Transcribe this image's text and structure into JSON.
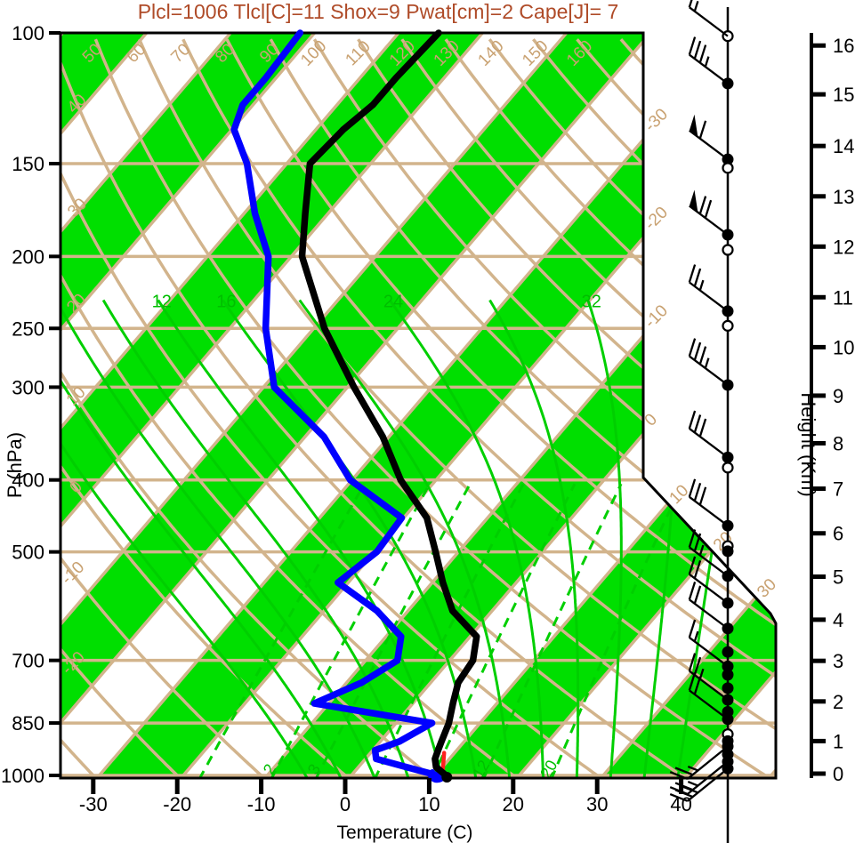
{
  "title": {
    "text": "Plcl=1006 Tlcl[C]=11 Shox=9 Pwat[cm]=2 Cape[J]= 7"
  },
  "axes": {
    "pressure": {
      "label": "P (hPa)",
      "ticks": [
        100,
        150,
        200,
        250,
        300,
        400,
        500,
        700,
        850,
        1000
      ]
    },
    "temperature": {
      "label": "Temperature (C)",
      "ticks": [
        -30,
        -20,
        -10,
        0,
        10,
        20,
        30,
        40
      ]
    },
    "height": {
      "label": "Height (Km)",
      "ticks": [
        0,
        1,
        2,
        3,
        4,
        5,
        6,
        7,
        8,
        9,
        10,
        11,
        12,
        13,
        14,
        15,
        16
      ]
    }
  },
  "background": {
    "dry_adiabat_labels_top": [
      "50",
      "60",
      "70",
      "80",
      "90",
      "100",
      "110",
      "120",
      "130",
      "140",
      "150",
      "160"
    ],
    "dry_adiabat_labels_left": [
      "40",
      "30",
      "20",
      "10",
      "0",
      "-10",
      "-20",
      "-30"
    ],
    "isotherm_labels_right": [
      "-30",
      "-20",
      "-10",
      "0",
      "10",
      "20",
      "30"
    ],
    "moist_adiabat_labels": [
      "12",
      "16",
      "24",
      "32"
    ],
    "mixing_ratio_labels": [
      "2",
      "3",
      "12",
      "20"
    ]
  },
  "colors": {
    "tan_lines": "#D2B48C",
    "tan_labels": "#C9A272",
    "green_fill": "#00DF00",
    "green_lines": "#00CF00",
    "green_labels": "#00BE00",
    "temperature_line": "#000000",
    "dewpoint_line": "#0000FF",
    "parcel_line": "#FF2020",
    "title_color": "#AF4B28"
  },
  "chart_data": {
    "type": "line",
    "subtype": "skewt-logp-sounding",
    "title": "Plcl=1006 Tlcl[C]=11 Shox=9 Pwat[cm]=2 Cape[J]= 7",
    "xlabel": "Temperature (C)",
    "ylabel_left": "P (hPa)",
    "ylabel_right": "Height (Km)",
    "x_range_c": [
      -30,
      40
    ],
    "pressure_range_hpa": [
      100,
      1000
    ],
    "height_range_km": [
      0,
      16
    ],
    "pressure_hpa": [
      1000,
      975,
      950,
      925,
      900,
      850,
      800,
      750,
      700,
      650,
      600,
      550,
      500,
      450,
      400,
      350,
      300,
      250,
      200,
      175,
      150,
      135,
      125,
      115,
      100
    ],
    "series": [
      {
        "name": "temperature_c",
        "values": [
          12,
          10,
          9,
          8.5,
          8,
          7,
          5.5,
          4,
          3.5,
          1.5,
          -4,
          -8,
          -12,
          -16.5,
          -23.5,
          -30,
          -38.5,
          -48,
          -58,
          -62,
          -66.5,
          -66,
          -65,
          -65,
          -64.5
        ]
      },
      {
        "name": "dewpoint_c",
        "values": [
          11,
          6.5,
          2,
          1,
          3,
          5,
          -11,
          -7.5,
          -5.5,
          -7.5,
          -13,
          -20.5,
          -19,
          -19.5,
          -29.5,
          -37,
          -48,
          -55,
          -62,
          -68,
          -74,
          -79,
          -80.5,
          -80.5,
          -81
        ]
      }
    ],
    "parcel_trace": {
      "pressure_hpa": [
        1000,
        935
      ],
      "temperature_c": [
        12,
        10
      ]
    },
    "wind_barbs": [
      {
        "p": 101,
        "circle": "open",
        "flag": 0,
        "full": 1,
        "half": 1,
        "dir": "up"
      },
      {
        "p": 117,
        "circle": "filled",
        "flag": 0,
        "full": 3,
        "half": 1,
        "dir": "up"
      },
      {
        "p": 148,
        "circle": "filled",
        "flag": 1,
        "full": 1,
        "half": 0,
        "dir": "up"
      },
      {
        "p": 152,
        "circle": "open",
        "flag": 0,
        "full": 0,
        "half": 0,
        "dir": "up"
      },
      {
        "p": 187,
        "circle": "filled",
        "flag": 1,
        "full": 2,
        "half": 0,
        "dir": "up"
      },
      {
        "p": 196,
        "circle": "open",
        "flag": 0,
        "full": 0,
        "half": 0,
        "dir": "up"
      },
      {
        "p": 237,
        "circle": "filled",
        "flag": 0,
        "full": 2,
        "half": 1,
        "dir": "up"
      },
      {
        "p": 248,
        "circle": "open",
        "flag": 0,
        "full": 0,
        "half": 0,
        "dir": "up"
      },
      {
        "p": 298,
        "circle": "filled",
        "flag": 0,
        "full": 3,
        "half": 1,
        "dir": "up"
      },
      {
        "p": 373,
        "circle": "filled",
        "flag": 0,
        "full": 3,
        "half": 0,
        "dir": "up"
      },
      {
        "p": 385,
        "circle": "open",
        "flag": 0,
        "full": 0,
        "half": 0,
        "dir": "up"
      },
      {
        "p": 461,
        "circle": "filled",
        "flag": 0,
        "full": 3,
        "half": 0,
        "dir": "up"
      },
      {
        "p": 491,
        "circle": "open",
        "flag": 0,
        "full": 0,
        "half": 0,
        "dir": "up"
      },
      {
        "p": 499,
        "circle": "filled",
        "flag": 0,
        "full": 0,
        "half": 0,
        "dir": "up"
      },
      {
        "p": 539,
        "circle": "filled",
        "flag": 0,
        "full": 2,
        "half": 1,
        "dir": "up"
      },
      {
        "p": 586,
        "circle": "filled",
        "flag": 0,
        "full": 2,
        "half": 0,
        "dir": "up"
      },
      {
        "p": 634,
        "circle": "filled",
        "flag": 0,
        "full": 2,
        "half": 0,
        "dir": "up"
      },
      {
        "p": 682,
        "circle": "filled",
        "flag": 0,
        "full": 0,
        "half": 0,
        "dir": "up"
      },
      {
        "p": 713,
        "circle": "filled",
        "flag": 0,
        "full": 1,
        "half": 1,
        "dir": "up"
      },
      {
        "p": 732,
        "circle": "filled",
        "flag": 0,
        "full": 0,
        "half": 0,
        "dir": "up"
      },
      {
        "p": 763,
        "circle": "filled",
        "flag": 0,
        "full": 0,
        "half": 0,
        "dir": "up"
      },
      {
        "p": 791,
        "circle": "filled",
        "flag": 0,
        "full": 2,
        "half": 1,
        "dir": "up"
      },
      {
        "p": 821,
        "circle": "filled",
        "flag": 0,
        "full": 0,
        "half": 0,
        "dir": "up"
      },
      {
        "p": 840,
        "circle": "filled",
        "flag": 0,
        "full": 2,
        "half": 0,
        "dir": "up"
      },
      {
        "p": 880,
        "circle": "open",
        "flag": 0,
        "full": 0,
        "half": 0,
        "dir": "up"
      },
      {
        "p": 899,
        "circle": "filled",
        "flag": 0,
        "full": 0,
        "half": 0,
        "dir": "up"
      },
      {
        "p": 914,
        "circle": "filled",
        "flag": 0,
        "full": 2,
        "half": 1,
        "dir": "down"
      },
      {
        "p": 937,
        "circle": "filled",
        "flag": 0,
        "full": 0,
        "half": 0,
        "dir": "down"
      },
      {
        "p": 958,
        "circle": "filled",
        "flag": 0,
        "full": 2,
        "half": 1,
        "dir": "down"
      },
      {
        "p": 979,
        "circle": "filled",
        "flag": 0,
        "full": 3,
        "half": 0,
        "dir": "down"
      }
    ],
    "background_lines": {
      "isotherms_c": [
        -110,
        -100,
        -90,
        -80,
        -70,
        -60,
        -50,
        -40,
        -30,
        -20,
        -10,
        0,
        10,
        20,
        30,
        40,
        50
      ],
      "green_band_lower_edges_c": [
        -130,
        -110,
        -90,
        -70,
        -50,
        -30,
        -10,
        10,
        30,
        50
      ],
      "dry_adiabats_c": [
        -30,
        -20,
        -10,
        0,
        10,
        20,
        30,
        40,
        50,
        60,
        70,
        80,
        90,
        100,
        110,
        120,
        130,
        140,
        150,
        160,
        170
      ],
      "moist_adiabats_c": [
        -4,
        0,
        4,
        8,
        12,
        16,
        20,
        24,
        28,
        32,
        36,
        40
      ],
      "mixing_ratio_gkg": [
        1,
        2,
        3,
        5,
        8,
        12,
        20
      ]
    }
  }
}
